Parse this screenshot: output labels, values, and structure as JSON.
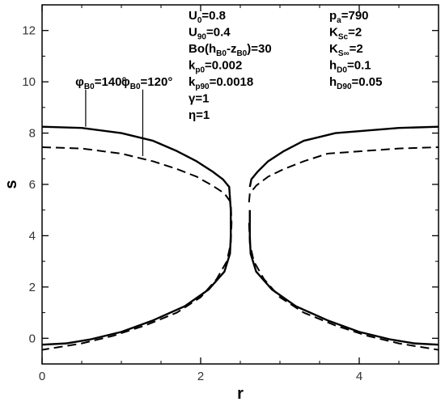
{
  "chart_data": {
    "type": "line",
    "xlabel": "r",
    "ylabel": "s",
    "xlim": [
      0,
      5
    ],
    "ylim": [
      -1,
      13
    ],
    "x_ticks": [
      0,
      2,
      4
    ],
    "y_ticks": [
      0,
      2,
      4,
      6,
      8,
      10,
      12
    ],
    "x_tick_labels": [
      "0",
      "2",
      "4"
    ],
    "y_tick_labels": [
      "0",
      "2",
      "4",
      "6",
      "8",
      "10",
      "12"
    ],
    "grid": false,
    "legend": "none",
    "series": [
      {
        "name": "φB0=140°",
        "style": "solid",
        "color": "#000000",
        "points": [
          [
            0.0,
            8.25
          ],
          [
            0.5,
            8.2
          ],
          [
            1.0,
            8.0
          ],
          [
            1.4,
            7.7
          ],
          [
            1.7,
            7.3
          ],
          [
            1.95,
            6.9
          ],
          [
            2.15,
            6.5
          ],
          [
            2.28,
            6.2
          ],
          [
            2.36,
            5.9
          ],
          [
            2.38,
            5.0
          ],
          [
            2.38,
            4.0
          ],
          [
            2.37,
            3.3
          ],
          [
            2.3,
            2.6
          ],
          [
            2.1,
            1.9
          ],
          [
            1.8,
            1.25
          ],
          [
            1.4,
            0.7
          ],
          [
            1.0,
            0.25
          ],
          [
            0.6,
            -0.05
          ],
          [
            0.3,
            -0.2
          ],
          [
            0.0,
            -0.25
          ],
          [
            null,
            null
          ],
          [
            2.62,
            5.9
          ],
          [
            2.64,
            6.2
          ],
          [
            2.72,
            6.5
          ],
          [
            2.85,
            6.9
          ],
          [
            3.05,
            7.3
          ],
          [
            3.3,
            7.7
          ],
          [
            3.7,
            8.0
          ],
          [
            4.5,
            8.2
          ],
          [
            5.0,
            8.25
          ],
          [
            null,
            null
          ],
          [
            2.62,
            5.0
          ],
          [
            2.62,
            4.0
          ],
          [
            2.63,
            3.3
          ],
          [
            2.7,
            2.6
          ],
          [
            2.9,
            1.9
          ],
          [
            3.2,
            1.25
          ],
          [
            3.6,
            0.7
          ],
          [
            4.0,
            0.25
          ],
          [
            4.4,
            -0.05
          ],
          [
            4.7,
            -0.2
          ],
          [
            5.0,
            -0.25
          ]
        ]
      },
      {
        "name": "φB0=120°",
        "style": "dashed",
        "color": "#000000",
        "points": [
          [
            0.0,
            7.45
          ],
          [
            0.5,
            7.4
          ],
          [
            1.0,
            7.2
          ],
          [
            1.4,
            6.9
          ],
          [
            1.7,
            6.6
          ],
          [
            1.95,
            6.3
          ],
          [
            2.15,
            5.95
          ],
          [
            2.3,
            5.65
          ],
          [
            2.38,
            5.3
          ],
          [
            2.39,
            4.5
          ],
          [
            2.38,
            3.7
          ],
          [
            2.33,
            3.0
          ],
          [
            2.2,
            2.3
          ],
          [
            2.0,
            1.6
          ],
          [
            1.7,
            1.0
          ],
          [
            1.3,
            0.5
          ],
          [
            0.9,
            0.1
          ],
          [
            0.5,
            -0.2
          ],
          [
            0.2,
            -0.35
          ],
          [
            0.0,
            -0.45
          ],
          [
            null,
            null
          ],
          [
            2.61,
            5.3
          ],
          [
            2.62,
            5.65
          ],
          [
            2.7,
            5.95
          ],
          [
            2.85,
            6.3
          ],
          [
            3.05,
            6.6
          ],
          [
            3.3,
            6.9
          ],
          [
            3.6,
            7.2
          ],
          [
            4.5,
            7.4
          ],
          [
            5.0,
            7.45
          ],
          [
            null,
            null
          ],
          [
            2.61,
            4.5
          ],
          [
            2.62,
            3.7
          ],
          [
            2.67,
            3.0
          ],
          [
            2.8,
            2.3
          ],
          [
            3.0,
            1.6
          ],
          [
            3.3,
            1.0
          ],
          [
            3.7,
            0.5
          ],
          [
            4.1,
            0.1
          ],
          [
            4.5,
            -0.2
          ],
          [
            4.8,
            -0.35
          ],
          [
            5.0,
            -0.45
          ]
        ]
      }
    ],
    "curve_labels": [
      {
        "main": "φ",
        "sub": "B0",
        "tail": "=140°",
        "x": 0.42,
        "y": 9.85,
        "pointer": [
          [
            0.55,
            9.7
          ],
          [
            0.55,
            8.25
          ]
        ]
      },
      {
        "main": "φ",
        "sub": "B0",
        "tail": "=120°",
        "x": 1.0,
        "y": 9.85,
        "pointer": [
          [
            1.27,
            9.7
          ],
          [
            1.27,
            7.1
          ]
        ]
      }
    ],
    "parameter_text_left": [
      {
        "main": "U",
        "sub": "0",
        "tail": "=0.8"
      },
      {
        "main": "U",
        "sub": "90",
        "tail": "=0.4"
      },
      {
        "main": "Bo(h",
        "sub": "B0",
        "tail": "-z",
        "sub2": "B0",
        "tail2": ")=30"
      },
      {
        "main": "k",
        "sub": "p0",
        "tail": "=0.002"
      },
      {
        "main": "k",
        "sub": "p90",
        "tail": "=0.0018"
      },
      {
        "main": "γ",
        "sub": "",
        "tail": "=1"
      },
      {
        "main": "η",
        "sub": "",
        "tail": "=1"
      }
    ],
    "parameter_text_right": [
      {
        "main": "p",
        "sub": "a",
        "tail": "=790"
      },
      {
        "main": "K",
        "sub": "Sc",
        "tail": "=2"
      },
      {
        "main": "K",
        "sub": "S∞",
        "tail": "=2"
      },
      {
        "main": "h",
        "sub": "D0",
        "tail": "=0.1"
      },
      {
        "main": "h",
        "sub": "D90",
        "tail": "=0.05"
      }
    ]
  }
}
